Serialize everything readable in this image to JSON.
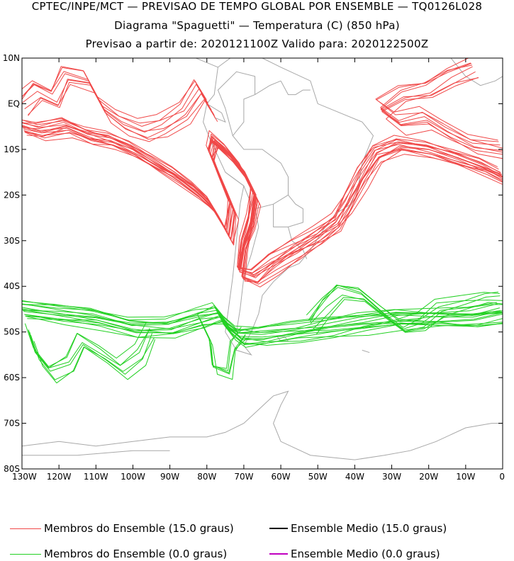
{
  "title": {
    "line1": "CPTEC/INPE/MCT — PREVISAO DE TEMPO GLOBAL POR ENSEMBLE — TQ0126L028",
    "line2": "Diagrama \"Spaguetti\" — Temperatura (C) (850 hPa)",
    "line3": "Previsao a partir de: 2020121100Z  Valido para: 2020122500Z"
  },
  "axes": {
    "lat_ticks": [
      {
        "value": 10,
        "label": "10N"
      },
      {
        "value": 0,
        "label": "EQ"
      },
      {
        "value": -10,
        "label": "10S"
      },
      {
        "value": -20,
        "label": "20S"
      },
      {
        "value": -30,
        "label": "30S"
      },
      {
        "value": -40,
        "label": "40S"
      },
      {
        "value": -50,
        "label": "50S"
      },
      {
        "value": -60,
        "label": "60S"
      },
      {
        "value": -70,
        "label": "70S"
      },
      {
        "value": -80,
        "label": "80S"
      }
    ],
    "lon_ticks": [
      {
        "value": -130,
        "label": "130W"
      },
      {
        "value": -120,
        "label": "120W"
      },
      {
        "value": -110,
        "label": "110W"
      },
      {
        "value": -100,
        "label": "100W"
      },
      {
        "value": -90,
        "label": "90W"
      },
      {
        "value": -80,
        "label": "80W"
      },
      {
        "value": -70,
        "label": "70W"
      },
      {
        "value": -60,
        "label": "60W"
      },
      {
        "value": -50,
        "label": "50W"
      },
      {
        "value": -40,
        "label": "40W"
      },
      {
        "value": -30,
        "label": "30W"
      },
      {
        "value": -20,
        "label": "20W"
      },
      {
        "value": -10,
        "label": "10W"
      },
      {
        "value": 0,
        "label": "0"
      }
    ],
    "lon_range": [
      -130,
      0
    ],
    "lat_range": [
      -80,
      10
    ]
  },
  "colors": {
    "member_15": "#f04848",
    "member_0": "#22d022",
    "mean_15": "#000000",
    "mean_0": "#c000c0",
    "coast": "#a8a8a8",
    "frame": "#000000"
  },
  "legend": {
    "member_15": "Membros do Ensemble (15.0 graus)",
    "mean_15": "Ensemble Medio (15.0 graus)",
    "member_0": "Membros do Ensemble (0.0 graus)",
    "mean_0": "Ensemble Medio (0.0 graus)"
  },
  "map_data": {
    "member_15_count": 15,
    "member_0_count": 15,
    "member_15_base": [
      [
        -130,
        -5
      ],
      [
        -125,
        -6
      ],
      [
        -118,
        -5
      ],
      [
        -112,
        -7
      ],
      [
        -106,
        -8
      ],
      [
        -100,
        -10
      ],
      [
        -94,
        -13
      ],
      [
        -88,
        -16
      ],
      [
        -83,
        -19
      ],
      [
        -79,
        -22
      ],
      [
        -76,
        -26
      ],
      [
        -74,
        -29
      ],
      [
        -73,
        -23
      ],
      [
        -76,
        -17
      ],
      [
        -79,
        -11
      ],
      [
        -78,
        -8
      ],
      [
        -74,
        -11
      ],
      [
        -70,
        -15
      ],
      [
        -67,
        -20
      ],
      [
        -68,
        -26
      ],
      [
        -70,
        -31
      ],
      [
        -71,
        -37
      ],
      [
        -67,
        -38
      ],
      [
        -62,
        -35
      ],
      [
        -56,
        -32
      ],
      [
        -50,
        -29
      ],
      [
        -45,
        -26
      ],
      [
        -42,
        -22
      ],
      [
        -38,
        -16
      ],
      [
        -34,
        -11
      ],
      [
        -28,
        -9
      ],
      [
        -20,
        -10
      ],
      [
        -12,
        -12
      ],
      [
        -5,
        -14
      ],
      [
        0,
        -16
      ]
    ],
    "member_15_north_a": [
      [
        -130,
        0
      ],
      [
        -126,
        3
      ],
      [
        -121,
        1
      ],
      [
        -118,
        6
      ],
      [
        -112,
        5
      ],
      [
        -108,
        -1
      ],
      [
        -103,
        -4
      ],
      [
        -97,
        -6
      ],
      [
        -92,
        -5
      ],
      [
        -86,
        -2
      ],
      [
        -82,
        3
      ],
      [
        -79,
        -1
      ]
    ],
    "member_15_north_b": [
      [
        -8,
        8
      ],
      [
        -14,
        6
      ],
      [
        -20,
        3
      ],
      [
        -27,
        2
      ],
      [
        -33,
        -1
      ],
      [
        -28,
        -4
      ],
      [
        -21,
        -3
      ],
      [
        -15,
        -6
      ],
      [
        -8,
        -9
      ],
      [
        0,
        -10
      ]
    ],
    "member_0_base": [
      [
        -130,
        -45
      ],
      [
        -120,
        -46
      ],
      [
        -110,
        -47
      ],
      [
        -100,
        -49
      ],
      [
        -90,
        -49
      ],
      [
        -82,
        -47
      ],
      [
        -77,
        -46
      ],
      [
        -74,
        -49
      ],
      [
        -71,
        -51
      ],
      [
        -65,
        -51
      ],
      [
        -56,
        -50
      ],
      [
        -47,
        -49
      ],
      [
        -38,
        -48
      ],
      [
        -28,
        -47
      ],
      [
        -18,
        -47
      ],
      [
        -8,
        -47
      ],
      [
        0,
        -46
      ]
    ],
    "member_0_loop_a": [
      [
        -128,
        -50
      ],
      [
        -126,
        -55
      ],
      [
        -122,
        -59
      ],
      [
        -117,
        -57
      ],
      [
        -114,
        -52
      ],
      [
        -108,
        -55
      ],
      [
        -103,
        -58
      ],
      [
        -98,
        -55
      ],
      [
        -95,
        -50
      ]
    ],
    "member_0_loop_b": [
      [
        -82,
        -47
      ],
      [
        -79,
        -52
      ],
      [
        -78,
        -58
      ],
      [
        -74,
        -59
      ],
      [
        -73,
        -53
      ],
      [
        -70,
        -50
      ]
    ],
    "member_0_loop_c": [
      [
        -52,
        -48
      ],
      [
        -48,
        -44
      ],
      [
        -44,
        -41
      ],
      [
        -38,
        -42
      ],
      [
        -32,
        -46
      ],
      [
        -27,
        -49
      ],
      [
        -22,
        -48
      ],
      [
        -17,
        -45
      ],
      [
        -10,
        -44
      ],
      [
        -4,
        -43
      ],
      [
        0,
        -43
      ]
    ]
  }
}
